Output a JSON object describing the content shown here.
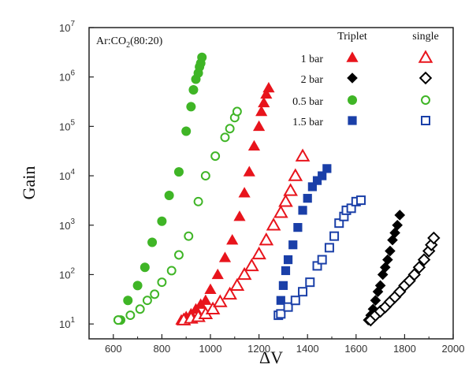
{
  "chart_data": {
    "type": "scatter",
    "title": "",
    "annotation": {
      "prefix": "Ar:CO",
      "sub": "2",
      "suffix": "(80:20)"
    },
    "xlabel": "ΔV",
    "ylabel": "Gain",
    "xlim": [
      500,
      2000
    ],
    "ylim": [
      5,
      10000000
    ],
    "y_scale": "log",
    "x_ticks": [
      "600",
      "800",
      "1000",
      "1200",
      "1400",
      "1600",
      "1800",
      "2000"
    ],
    "y_ticks": [
      {
        "base": "10",
        "exp": "1",
        "value": 10
      },
      {
        "base": "10",
        "exp": "2",
        "value": 100
      },
      {
        "base": "10",
        "exp": "3",
        "value": 1000
      },
      {
        "base": "10",
        "exp": "4",
        "value": 10000
      },
      {
        "base": "10",
        "exp": "5",
        "value": 100000
      },
      {
        "base": "10",
        "exp": "6",
        "value": 1000000
      },
      {
        "base": "10",
        "exp": "7",
        "value": 10000000
      }
    ],
    "grid": false,
    "legend": {
      "placement": "top-right",
      "header_triplet": "Triplet",
      "header_single": "single",
      "rows": [
        "1 bar",
        "2 bar",
        "0.5 bar",
        "1.5 bar"
      ]
    },
    "colors": {
      "1 bar": "#e8141c",
      "2 bar": "#000000",
      "0.5 bar": "#3fb526",
      "1.5 bar": "#1a3fa8"
    },
    "series": [
      {
        "pressure": "0.5 bar",
        "style": "triplet",
        "marker": "circle",
        "filled": true,
        "x": [
          620,
          630,
          660,
          700,
          730,
          760,
          800,
          830,
          870,
          900,
          920,
          930,
          940,
          950,
          955,
          960,
          965
        ],
        "y": [
          12,
          12,
          30,
          60,
          140,
          450,
          1200,
          4000,
          12000,
          80000,
          250000,
          550000,
          900000,
          1200000,
          1600000,
          1900000,
          2500000
        ]
      },
      {
        "pressure": "0.5 bar",
        "style": "single",
        "marker": "circle",
        "filled": false,
        "x": [
          620,
          670,
          710,
          740,
          770,
          800,
          840,
          870,
          910,
          950,
          980,
          1020,
          1060,
          1080,
          1100,
          1110
        ],
        "y": [
          12,
          15,
          20,
          30,
          40,
          70,
          120,
          250,
          600,
          3000,
          10000,
          25000,
          60000,
          90000,
          150000,
          200000
        ]
      },
      {
        "pressure": "1 bar",
        "style": "triplet",
        "marker": "triangle",
        "filled": true,
        "x": [
          880,
          900,
          920,
          940,
          960,
          980,
          1000,
          1030,
          1060,
          1090,
          1120,
          1140,
          1160,
          1180,
          1200,
          1210,
          1220,
          1230,
          1240
        ],
        "y": [
          12,
          14,
          16,
          20,
          25,
          30,
          50,
          100,
          220,
          500,
          1500,
          4500,
          12000,
          40000,
          100000,
          200000,
          300000,
          450000,
          600000
        ]
      },
      {
        "pressure": "1 bar",
        "style": "single",
        "marker": "triangle",
        "filled": false,
        "x": [
          890,
          920,
          950,
          980,
          1010,
          1040,
          1080,
          1110,
          1140,
          1170,
          1200,
          1230,
          1260,
          1290,
          1310,
          1330,
          1350,
          1380
        ],
        "y": [
          12,
          13,
          14,
          16,
          20,
          28,
          40,
          60,
          100,
          150,
          260,
          500,
          1000,
          1800,
          3000,
          5000,
          10000,
          25000
        ]
      },
      {
        "pressure": "1.5 bar",
        "style": "triplet",
        "marker": "square",
        "filled": true,
        "x": [
          1280,
          1290,
          1300,
          1310,
          1320,
          1340,
          1360,
          1380,
          1400,
          1420,
          1440,
          1460,
          1480
        ],
        "y": [
          15,
          30,
          60,
          120,
          200,
          400,
          900,
          2000,
          3500,
          6000,
          8000,
          10000,
          14000
        ]
      },
      {
        "pressure": "1.5 bar",
        "style": "single",
        "marker": "square",
        "filled": false,
        "x": [
          1280,
          1290,
          1320,
          1350,
          1380,
          1410,
          1440,
          1460,
          1490,
          1510,
          1530,
          1550,
          1560,
          1580,
          1600,
          1620
        ],
        "y": [
          15,
          16,
          22,
          30,
          45,
          70,
          150,
          200,
          350,
          600,
          1100,
          1500,
          2000,
          2200,
          3000,
          3200
        ]
      },
      {
        "pressure": "2 bar",
        "style": "triplet",
        "marker": "diamond",
        "filled": true,
        "x": [
          1650,
          1660,
          1670,
          1680,
          1690,
          1700,
          1710,
          1720,
          1730,
          1740,
          1750,
          1760,
          1770,
          1780
        ],
        "y": [
          12,
          15,
          20,
          30,
          45,
          60,
          100,
          140,
          200,
          300,
          500,
          700,
          1000,
          1600
        ]
      },
      {
        "pressure": "2 bar",
        "style": "single",
        "marker": "diamond",
        "filled": false,
        "x": [
          1660,
          1680,
          1700,
          1720,
          1740,
          1760,
          1780,
          1800,
          1820,
          1840,
          1860,
          1880,
          1900,
          1910,
          1920
        ],
        "y": [
          12,
          15,
          18,
          22,
          28,
          35,
          45,
          60,
          75,
          100,
          140,
          200,
          300,
          400,
          550
        ]
      }
    ]
  }
}
